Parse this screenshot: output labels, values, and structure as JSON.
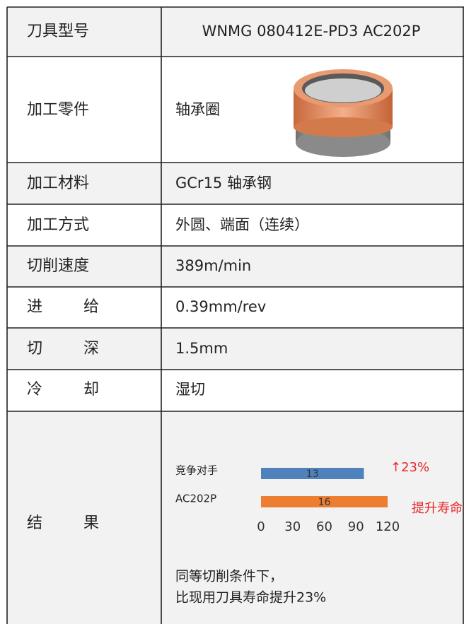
{
  "table": {
    "rows": [
      [
        "刀具型号",
        "WNMG 080412E-PD3 AC202P"
      ],
      [
        "加工零件",
        "轴承圈"
      ],
      [
        "加工材料",
        "GCr15 轴承钢"
      ],
      [
        "加工方式",
        "外圆、端面（连续）"
      ],
      [
        "切削速度",
        "389m/min"
      ],
      [
        "进给",
        "0.39mm/rev"
      ],
      [
        "切深",
        "1.5mm"
      ],
      [
        "冷却",
        "湿切"
      ],
      [
        "结果"
      ]
    ]
  },
  "chart_data": {
    "type": "bar",
    "horizontal": true,
    "categories": [
      "竞争对手",
      "AC202P"
    ],
    "series": [
      {
        "values": [
          97.5,
          120
        ],
        "colors": [
          "#4f81bd",
          "#ed7d31"
        ]
      }
    ],
    "bar_texts": [
      "13",
      "16"
    ],
    "xlim": [
      0,
      120
    ],
    "xticks": [
      0,
      30,
      60,
      90,
      120
    ],
    "annotations": [
      "↑23%",
      "提升寿命"
    ],
    "annotation_color": "#e8262b"
  },
  "conclusion": [
    "同等切削条件下，",
    "比现用刀具寿命提升23%"
  ]
}
